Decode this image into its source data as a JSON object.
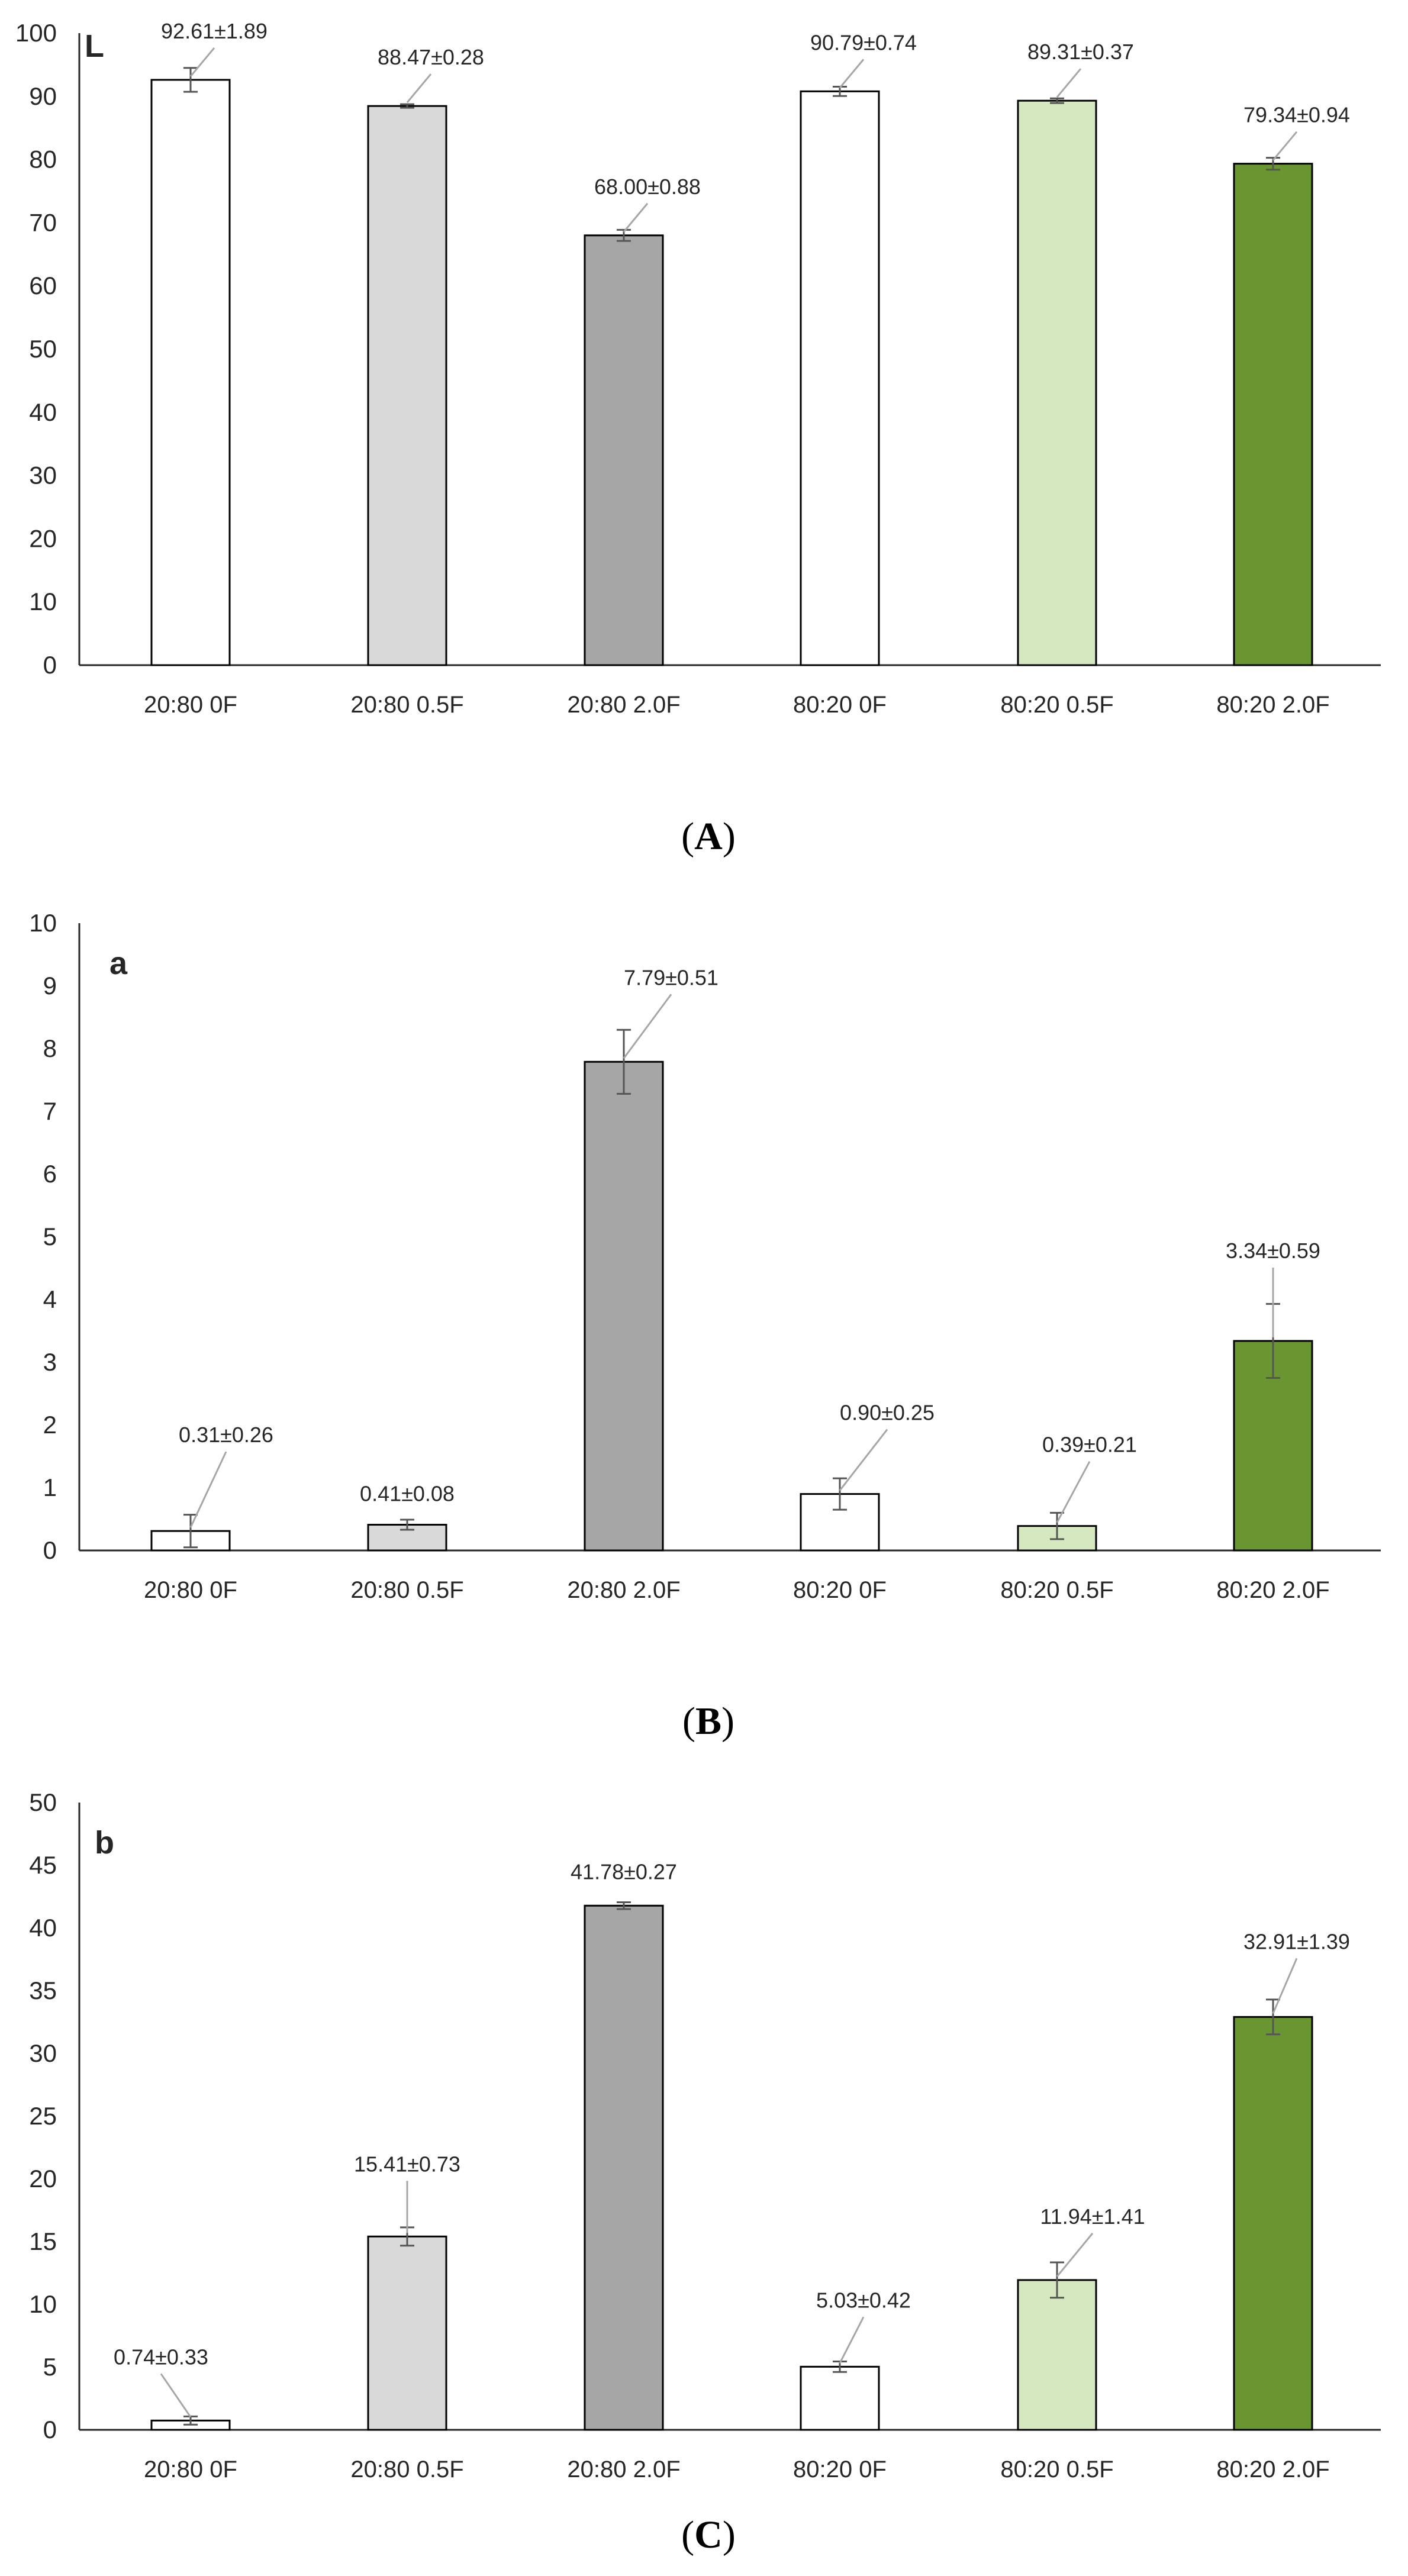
{
  "chart_data": [
    {
      "type": "bar",
      "panel_label": "L",
      "caption": {
        "open": "(",
        "letter": "A",
        "close": ")"
      },
      "categories": [
        "20:80  0F",
        "20:80  0.5F",
        "20:80  2.0F",
        "80:20  0F",
        "80:20  0.5F",
        "80:20 2.0F"
      ],
      "values": [
        92.61,
        88.47,
        68.0,
        90.79,
        89.31,
        79.34
      ],
      "errors": [
        1.89,
        0.28,
        0.88,
        0.74,
        0.37,
        0.94
      ],
      "data_labels": [
        "92.61±1.89",
        "88.47±0.28",
        "68.00±0.88",
        "90.79±0.74",
        "89.31±0.37",
        "79.34±0.94"
      ],
      "yticks": [
        "0",
        "10",
        "20",
        "30",
        "40",
        "50",
        "60",
        "70",
        "80",
        "90",
        "100"
      ],
      "ylim": [
        0,
        100
      ],
      "xlabel": "",
      "ylabel": "",
      "grid": false
    },
    {
      "type": "bar",
      "panel_label": "a",
      "caption": {
        "open": "(",
        "letter": "B",
        "close": ")"
      },
      "categories": [
        "20:80  0F",
        "20:80  0.5F",
        "20:80  2.0F",
        "80:20  0F",
        "80:20  0.5F",
        "80:20 2.0F"
      ],
      "values": [
        0.31,
        0.41,
        7.79,
        0.9,
        0.39,
        3.34
      ],
      "errors": [
        0.26,
        0.08,
        0.51,
        0.25,
        0.21,
        0.59
      ],
      "data_labels": [
        "0.31±0.26",
        "0.41±0.08",
        "7.79±0.51",
        "0.90±0.25",
        "0.39±0.21",
        "3.34±0.59"
      ],
      "yticks": [
        "0",
        "1",
        "2",
        "3",
        "4",
        "5",
        "6",
        "7",
        "8",
        "9",
        "10"
      ],
      "ylim": [
        0,
        10
      ],
      "xlabel": "",
      "ylabel": "",
      "grid": false
    },
    {
      "type": "bar",
      "panel_label": "b",
      "caption": {
        "open": "(",
        "letter": "C",
        "close": ")"
      },
      "categories": [
        "20:80  0F",
        "20:80  0.5F",
        "20:80  2.0F",
        "80:20  0F",
        "80:20  0.5F",
        "80:20 2.0F"
      ],
      "values": [
        0.74,
        15.41,
        41.78,
        5.03,
        11.94,
        32.91
      ],
      "errors": [
        0.33,
        0.73,
        0.27,
        0.42,
        1.41,
        1.39
      ],
      "data_labels": [
        "0.74±0.33",
        "15.41±0.73",
        "41.78±0.27",
        "5.03±0.42",
        "11.94±1.41",
        "32.91±1.39"
      ],
      "yticks": [
        "0",
        "5",
        "10",
        "15",
        "20",
        "25",
        "30",
        "35",
        "40",
        "45",
        "50"
      ],
      "ylim": [
        0,
        50
      ],
      "xlabel": "",
      "ylabel": "",
      "grid": false
    }
  ],
  "colors": {
    "bar_fills": [
      "#ffffff",
      "#d9d9d9",
      "#a6a6a6",
      "#ffffff",
      "#d6e8bf",
      "#6a9632"
    ],
    "bar_stroke": "#000000",
    "axis": "#262626",
    "error_bar": "#555555",
    "leader_line": "#a6a6a6",
    "text": "#262626"
  }
}
